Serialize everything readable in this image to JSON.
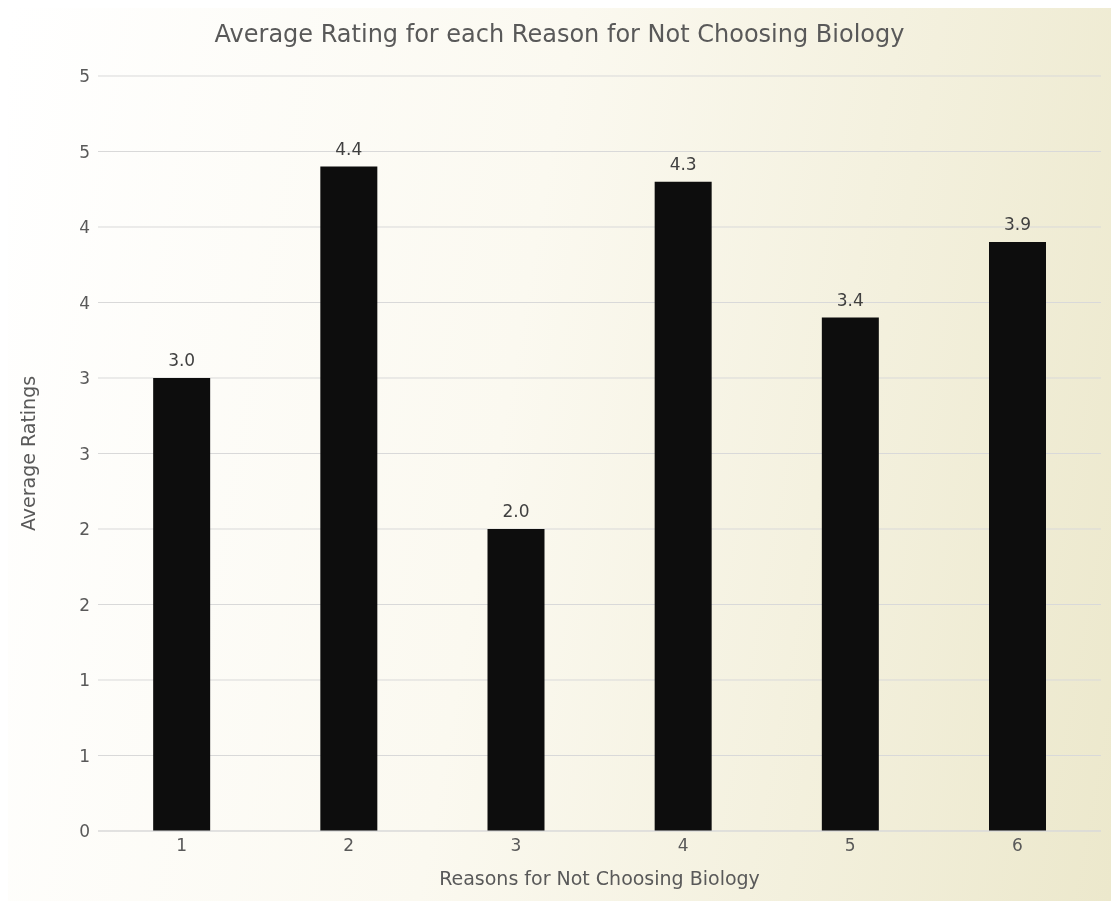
{
  "chart_data": {
    "type": "bar",
    "title": "Average Rating for each Reason for Not Choosing Biology",
    "xlabel": "Reasons for Not Choosing Biology",
    "ylabel": "Average Ratings",
    "categories": [
      "1",
      "2",
      "3",
      "4",
      "5",
      "6"
    ],
    "values": [
      3.0,
      4.4,
      2.0,
      4.3,
      3.4,
      3.9
    ],
    "value_labels": [
      "3.0",
      "4.4",
      "2.0",
      "4.3",
      "3.4",
      "3.9"
    ],
    "color": "#0d0d0d",
    "ylim": [
      0,
      5
    ],
    "yticks": [
      0,
      {
        "value": 0.5,
        "label": "1"
      },
      1,
      {
        "value": 1.5,
        "label": "2"
      },
      2,
      {
        "value": 2.5,
        "label": "3"
      },
      3,
      {
        "value": 3.5,
        "label": "4"
      },
      4,
      {
        "value": 4.5,
        "label": "5"
      },
      5
    ],
    "grid": "y"
  }
}
